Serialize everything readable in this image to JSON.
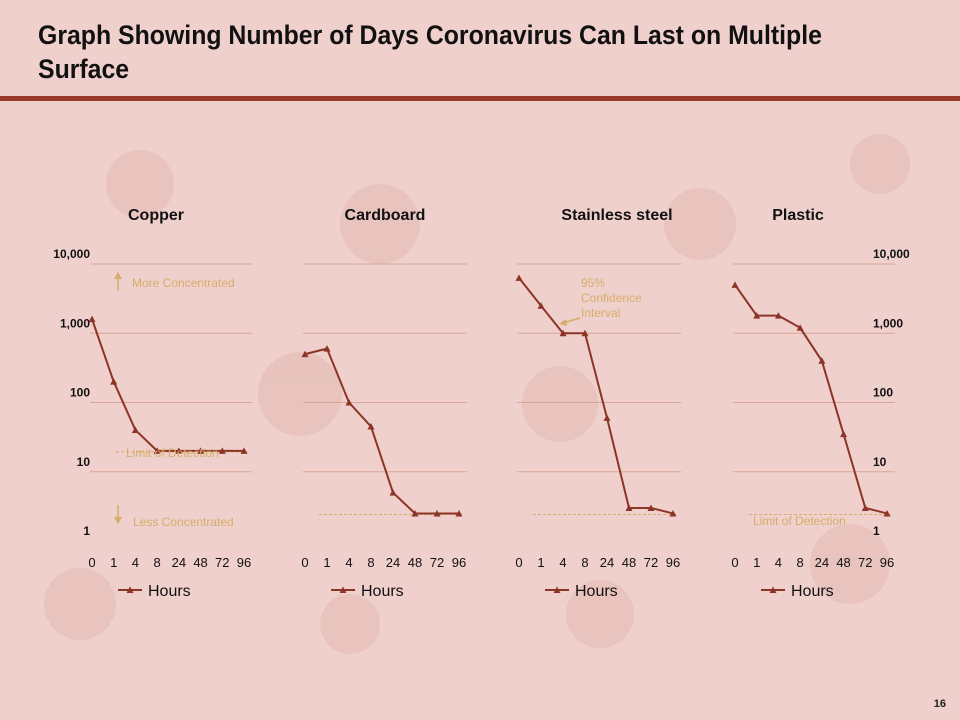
{
  "page": {
    "title": "Graph Showing Number of Days Coronavirus Can Last on Multiple Surface",
    "page_number": "16"
  },
  "colors": {
    "background": "#f0d0cc",
    "line": "#8c3426",
    "gridline": "#d9a596",
    "annotation": "#d6ad6a",
    "rule": "#9a3a2a"
  },
  "y_axis": {
    "tick_labels": [
      "1",
      "10",
      "100",
      "1,000",
      "10,000"
    ]
  },
  "annotations": {
    "more": "More Concentrated",
    "less": "Less Concentrated",
    "limit": "Limit of Detection",
    "ci": [
      "95%",
      "Confidence",
      "Interval"
    ]
  },
  "chart_data": [
    {
      "type": "line",
      "title": "Copper",
      "categories": [
        "0",
        "1",
        "4",
        "8",
        "24",
        "48",
        "72",
        "96"
      ],
      "series": [
        {
          "name": "Hours",
          "values": [
            1600,
            200,
            40,
            20,
            20,
            20,
            20,
            20
          ]
        }
      ],
      "yscale": "log",
      "ylim": [
        1,
        10000
      ],
      "limit_of_detection": 20,
      "legend": "bottom"
    },
    {
      "type": "line",
      "title": "Cardboard",
      "categories": [
        "0",
        "1",
        "4",
        "8",
        "24",
        "48",
        "72",
        "96"
      ],
      "series": [
        {
          "name": "Hours",
          "values": [
            500,
            600,
            100,
            45,
            5,
            2.5,
            2.5,
            2.5
          ]
        }
      ],
      "yscale": "log",
      "ylim": [
        1,
        10000
      ],
      "limit_of_detection": 2.5,
      "legend": "bottom"
    },
    {
      "type": "line",
      "title": "Stainless steel",
      "categories": [
        "0",
        "1",
        "4",
        "8",
        "24",
        "48",
        "72",
        "96"
      ],
      "series": [
        {
          "name": "Hours",
          "values": [
            6300,
            2500,
            1000,
            1000,
            60,
            3,
            3,
            2.5
          ]
        }
      ],
      "yscale": "log",
      "ylim": [
        1,
        10000
      ],
      "limit_of_detection": 2.5,
      "legend": "bottom"
    },
    {
      "type": "line",
      "title": "Plastic",
      "categories": [
        "0",
        "1",
        "4",
        "8",
        "24",
        "48",
        "72",
        "96"
      ],
      "series": [
        {
          "name": "Hours",
          "values": [
            5000,
            1800,
            1800,
            1200,
            400,
            35,
            3,
            2.5
          ]
        }
      ],
      "yscale": "log",
      "ylim": [
        1,
        10000
      ],
      "limit_of_detection": 2.5,
      "legend": "bottom"
    }
  ]
}
